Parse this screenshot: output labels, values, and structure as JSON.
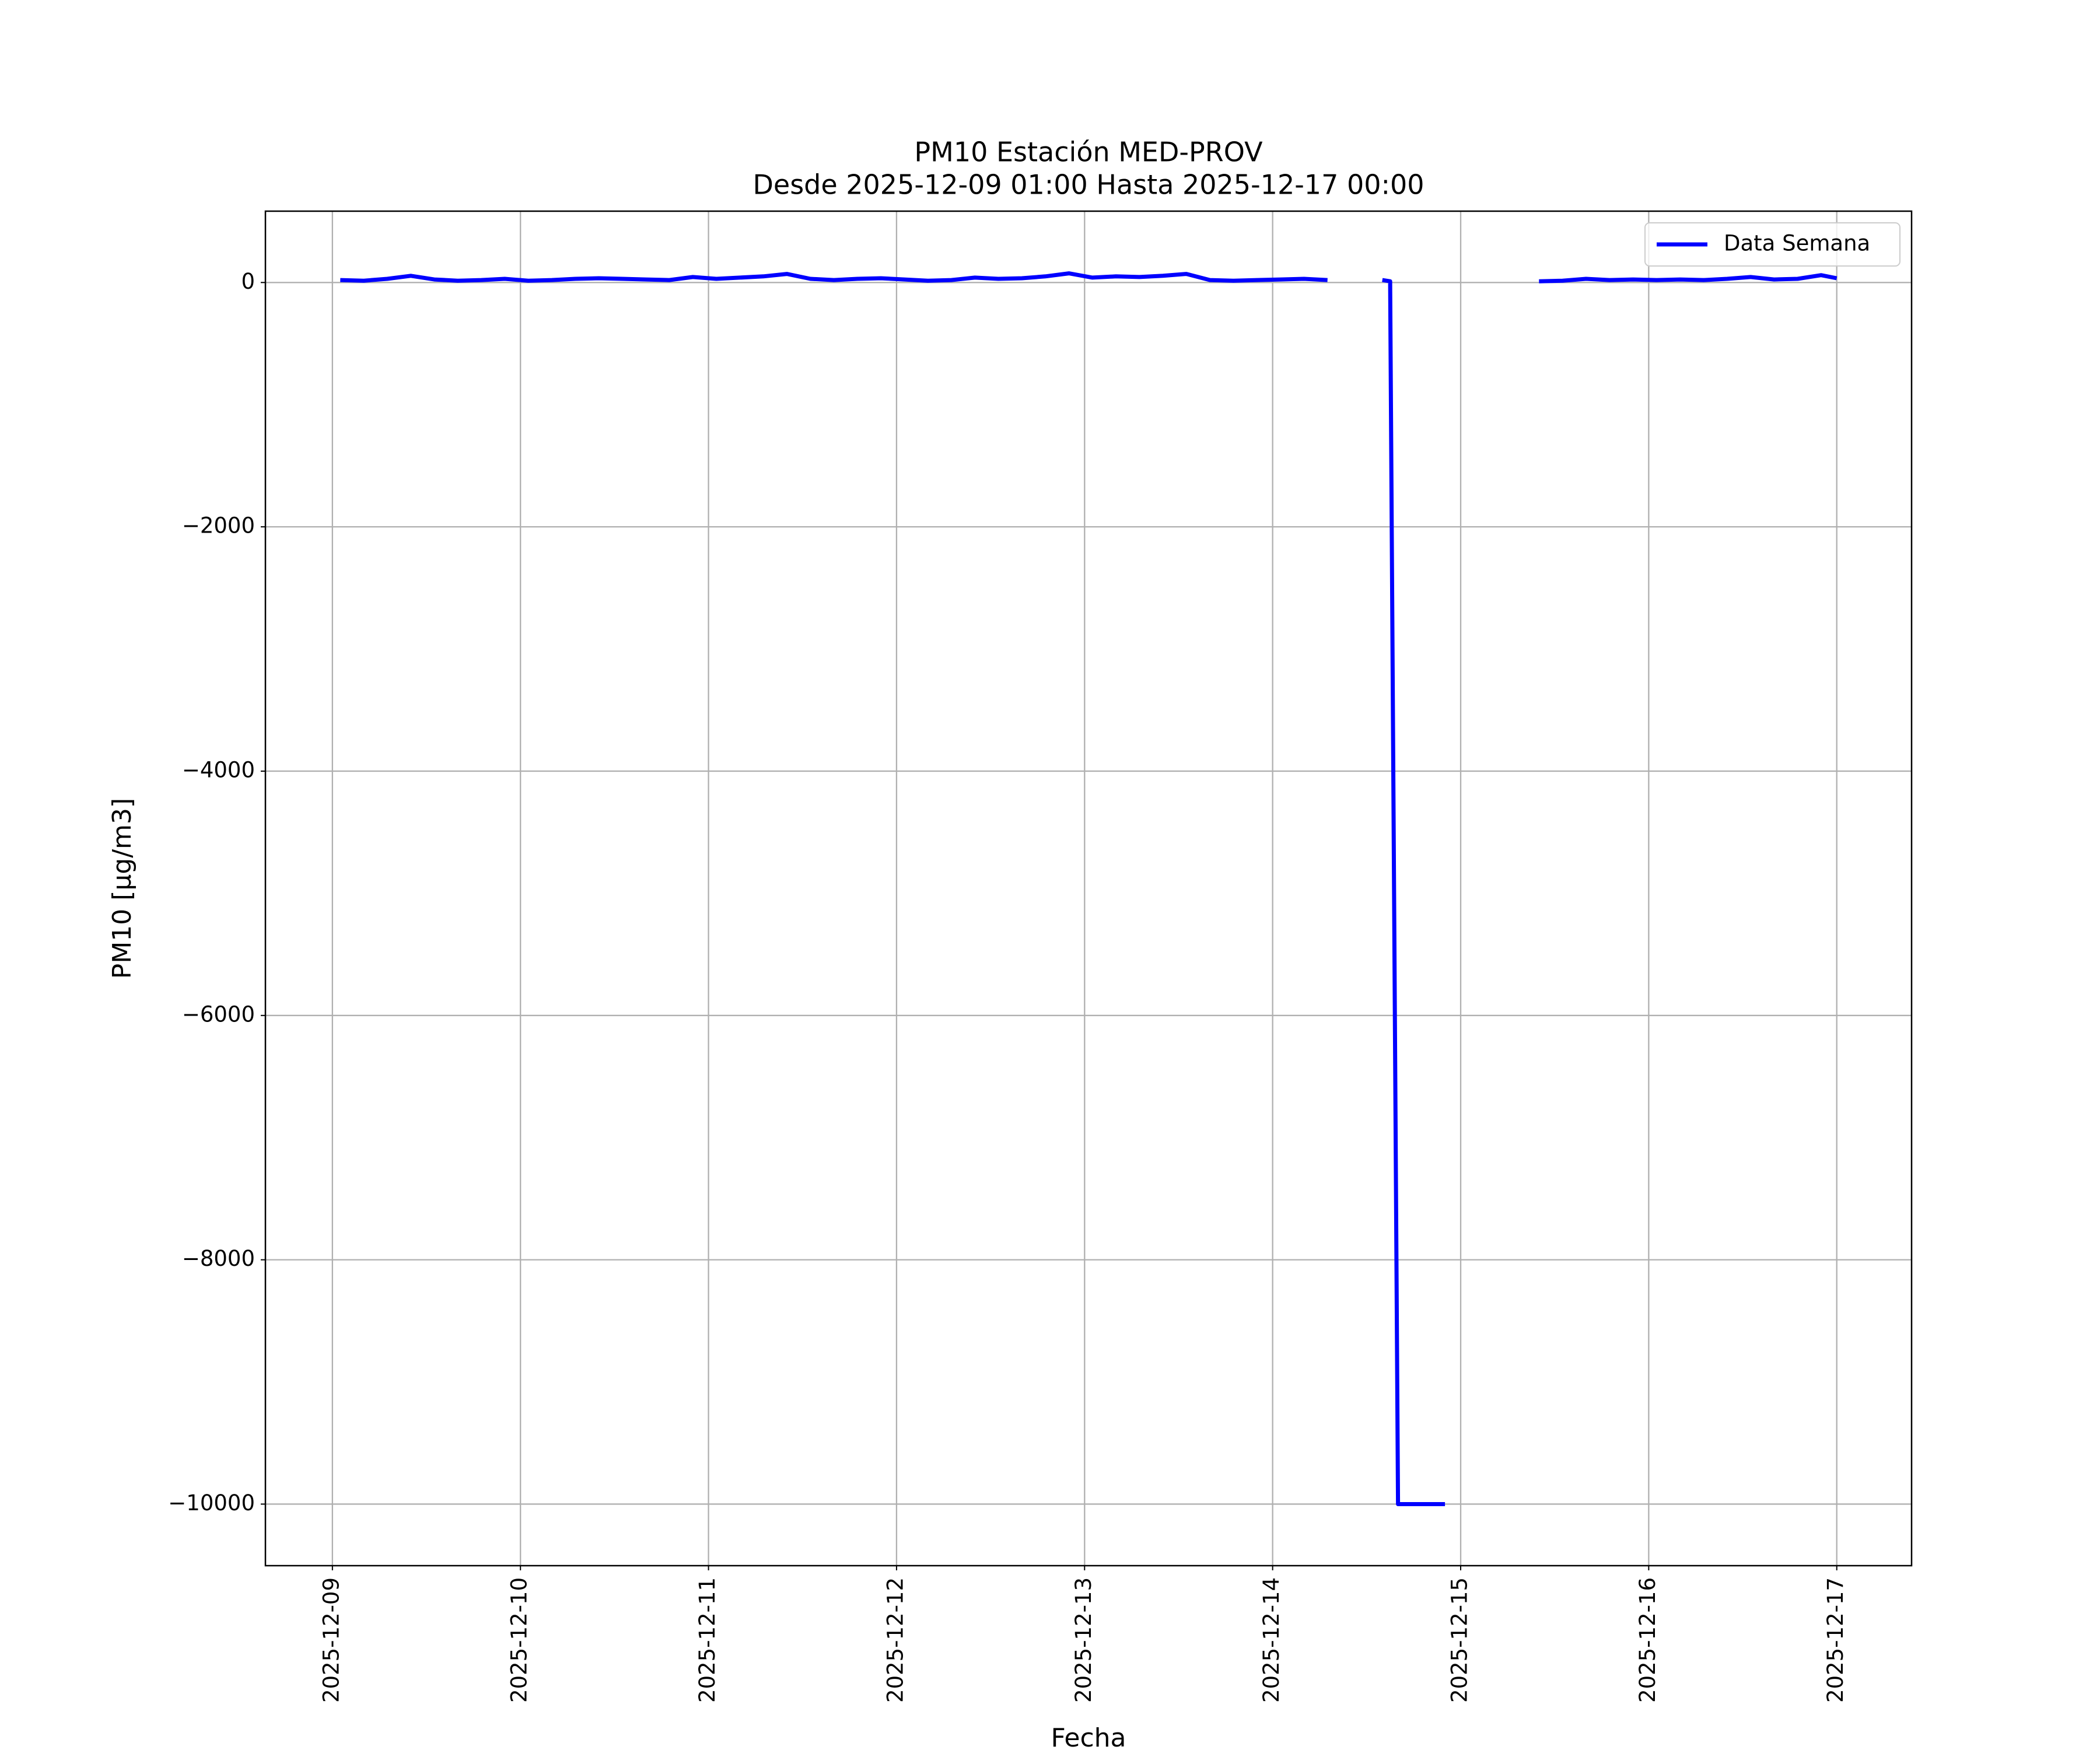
{
  "chart_data": {
    "type": "line",
    "title": "PM10 Estación MED-PROV",
    "subtitle": "Desde 2025-12-09 01:00 Hasta 2025-12-17 00:00",
    "x_label": "Fecha",
    "y_label": "PM10 [μg/m3]",
    "x": [
      "2025-12-09 01:00",
      "2025-12-09 04:00",
      "2025-12-09 07:00",
      "2025-12-09 10:00",
      "2025-12-09 13:00",
      "2025-12-09 16:00",
      "2025-12-09 19:00",
      "2025-12-09 22:00",
      "2025-12-10 01:00",
      "2025-12-10 04:00",
      "2025-12-10 07:00",
      "2025-12-10 10:00",
      "2025-12-10 13:00",
      "2025-12-10 16:00",
      "2025-12-10 19:00",
      "2025-12-10 22:00",
      "2025-12-11 01:00",
      "2025-12-11 04:00",
      "2025-12-11 07:00",
      "2025-12-11 10:00",
      "2025-12-11 13:00",
      "2025-12-11 16:00",
      "2025-12-11 19:00",
      "2025-12-11 22:00",
      "2025-12-12 01:00",
      "2025-12-12 04:00",
      "2025-12-12 07:00",
      "2025-12-12 10:00",
      "2025-12-12 13:00",
      "2025-12-12 16:00",
      "2025-12-12 19:00",
      "2025-12-12 22:00",
      "2025-12-13 01:00",
      "2025-12-13 04:00",
      "2025-12-13 07:00",
      "2025-12-13 10:00",
      "2025-12-13 13:00",
      "2025-12-13 16:00",
      "2025-12-13 19:00",
      "2025-12-13 22:00",
      "2025-12-14 01:00",
      "2025-12-14 04:00",
      "2025-12-14 07:00",
      "2025-12-14 10:00",
      "2025-12-14 14:00",
      "2025-12-14 15:00",
      "2025-12-14 16:00",
      "2025-12-14 22:00",
      "2025-12-15 01:00",
      "2025-12-15 10:00",
      "2025-12-15 13:00",
      "2025-12-15 16:00",
      "2025-12-15 19:00",
      "2025-12-15 22:00",
      "2025-12-16 01:00",
      "2025-12-16 04:00",
      "2025-12-16 07:00",
      "2025-12-16 10:00",
      "2025-12-16 13:00",
      "2025-12-16 16:00",
      "2025-12-16 19:00",
      "2025-12-16 22:00",
      "2025-12-17 00:00"
    ],
    "series": [
      {
        "name": "Data Semana",
        "color": "#0000ff",
        "values": [
          20,
          15,
          30,
          55,
          25,
          15,
          20,
          30,
          15,
          20,
          30,
          35,
          30,
          25,
          20,
          45,
          30,
          40,
          50,
          70,
          30,
          20,
          30,
          35,
          25,
          15,
          20,
          40,
          30,
          35,
          50,
          75,
          40,
          50,
          45,
          55,
          70,
          20,
          15,
          20,
          25,
          30,
          20,
          null,
          20,
          10,
          -10000,
          -10000,
          null,
          10,
          15,
          30,
          20,
          25,
          20,
          25,
          20,
          30,
          45,
          25,
          30,
          60,
          35
        ]
      }
    ],
    "xlim": [
      "2025-12-08 15:27",
      "2025-12-17 09:33"
    ],
    "ylim": [
      -10504,
      584
    ],
    "xticks": [
      "2025-12-09",
      "2025-12-10",
      "2025-12-11",
      "2025-12-12",
      "2025-12-13",
      "2025-12-14",
      "2025-12-15",
      "2025-12-16",
      "2025-12-17"
    ],
    "yticks": [
      {
        "value": -10000,
        "label": "−10000"
      },
      {
        "value": -8000,
        "label": "−8000"
      },
      {
        "value": -6000,
        "label": "−6000"
      },
      {
        "value": -4000,
        "label": "−4000"
      },
      {
        "value": -2000,
        "label": "−2000"
      },
      0
    ],
    "grid": true,
    "legend": "upper right"
  }
}
